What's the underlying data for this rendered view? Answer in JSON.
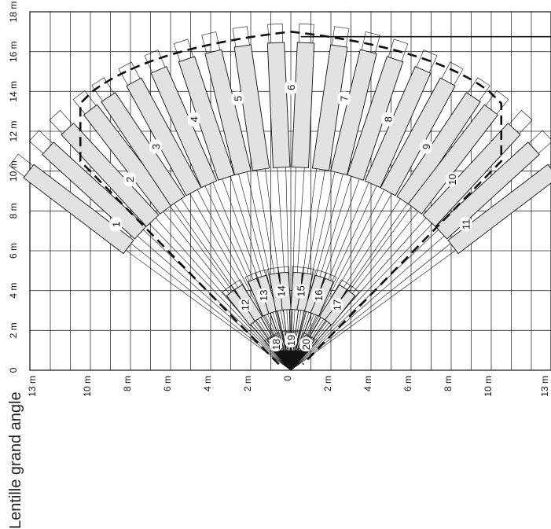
{
  "figure": {
    "caption": "Lentille grand angle",
    "x_axis": {
      "unit": "m",
      "tick_labels": [
        "13 m",
        "10 m",
        "8 m",
        "6 m",
        "4 m",
        "2 m",
        "0",
        "2 m",
        "4 m",
        "6 m",
        "8 m",
        "10 m",
        "13 m"
      ],
      "tick_values": [
        -13,
        -10,
        -8,
        -6,
        -4,
        -2,
        0,
        2,
        4,
        6,
        8,
        10,
        13
      ]
    },
    "y_axis": {
      "unit": "m",
      "tick_labels": [
        "0",
        "2 m",
        "4 m",
        "6 m",
        "8 m",
        "10 m",
        "12 m",
        "14 m",
        "16 m",
        "18 m"
      ],
      "tick_values": [
        0,
        2,
        4,
        6,
        8,
        10,
        12,
        14,
        16,
        18
      ]
    },
    "zones": {
      "long_range": {
        "range_m": 17,
        "labels": [
          "1",
          "2",
          "3",
          "4",
          "5",
          "6",
          "7",
          "8",
          "9",
          "10",
          "11"
        ],
        "angles_deg": [
          -50,
          -40,
          -31,
          -21,
          -11,
          0,
          11,
          21,
          31,
          40,
          50
        ]
      },
      "mid_range": {
        "range_m": 4.2,
        "labels": [
          "12",
          "13",
          "14",
          "15",
          "16",
          "17"
        ],
        "angles_deg": [
          -35,
          -20,
          -7,
          7,
          20,
          35
        ]
      },
      "near_range": {
        "range_m": 1.4,
        "labels": [
          "18",
          "19",
          "20"
        ],
        "angles_deg": [
          -30,
          0,
          30
        ]
      }
    },
    "detection_boundary": {
      "style": "dashed",
      "max_distance_m": 17,
      "side_half_width_m": 10.5
    }
  }
}
